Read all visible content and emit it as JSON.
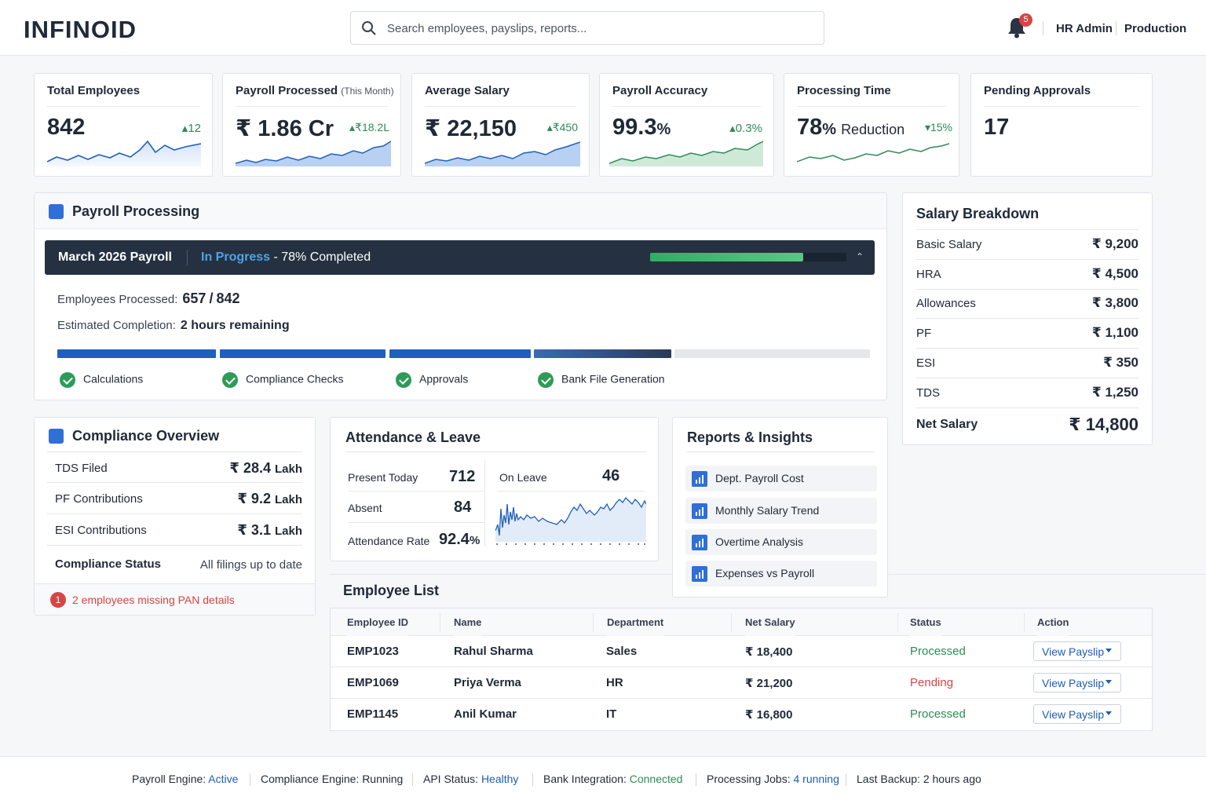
{
  "header": {
    "logo": "INFINOID",
    "search_placeholder": "Search employees, payslips, reports...",
    "notification_count": "5",
    "user": "HR Admin",
    "environment": "Production"
  },
  "kpis": [
    {
      "title": "Total Employees",
      "value": "842",
      "delta": "12",
      "trend": "up"
    },
    {
      "title": "Payroll Processed",
      "title_note": "(This Month)",
      "currency": "₹",
      "value": "1.86 Cr",
      "delta": "₹18.2L",
      "trend": "up"
    },
    {
      "title": "Average Salary",
      "currency": "₹",
      "value": "22,150",
      "delta": "₹450",
      "trend": "up"
    },
    {
      "title": "Payroll Accuracy",
      "value": "99.3",
      "unit": "%",
      "delta": "0.3%",
      "trend": "up"
    },
    {
      "title": "Processing Time",
      "value": "78",
      "unit": "%",
      "suffix": "Reduction",
      "delta": "15%",
      "trend": "down"
    },
    {
      "title": "Pending Approvals",
      "value": "17"
    }
  ],
  "payroll": {
    "title": "Payroll Processing",
    "run_name": "March 2026 Payroll",
    "status": "In Progress",
    "completed_text": " - 78% Completed",
    "progress": 0.78,
    "employees_label": "Employees Processed:",
    "employees_processed": "657",
    "employees_total": "842",
    "eta_label": "Estimated Completion:",
    "eta": "2 hours remaining",
    "steps": [
      "Calculations",
      "Compliance Checks",
      "Approvals",
      "Bank File Generation"
    ]
  },
  "salary_breakdown": {
    "title": "Salary Breakdown",
    "rows": [
      {
        "label": "Basic Salary",
        "value": "₹ 9,200"
      },
      {
        "label": "HRA",
        "value": "₹ 4,500"
      },
      {
        "label": "Allowances",
        "value": "₹ 3,800"
      },
      {
        "label": "PF",
        "value": "₹ 1,100"
      },
      {
        "label": "ESI",
        "value": "₹ 350"
      },
      {
        "label": "TDS",
        "value": "₹ 1,250"
      }
    ],
    "net_label": "Net Salary",
    "net_value": "₹ 14,800"
  },
  "compliance": {
    "title": "Compliance Overview",
    "rows": [
      {
        "label": "TDS Filed",
        "value": "₹ 28.4",
        "unit": "Lakh"
      },
      {
        "label": "PF Contributions",
        "value": "₹ 9.2",
        "unit": "Lakh"
      },
      {
        "label": "ESI Contributions",
        "value": "₹ 3.1",
        "unit": "Lakh"
      }
    ],
    "status_label": "Compliance Status",
    "status_value": "All filings up to date",
    "alert_count": "1",
    "alert_text": "2 employees missing PAN details"
  },
  "attendance": {
    "title": "Attendance & Leave",
    "present_label": "Present Today",
    "present": "712",
    "absent_label": "Absent",
    "absent": "84",
    "rate_label": "Attendance Rate",
    "rate": "92.4",
    "rate_unit": "%",
    "leave_label": "On Leave",
    "leave": "46"
  },
  "reports": {
    "title": "Reports & Insights",
    "items": [
      "Dept. Payroll Cost",
      "Monthly Salary Trend",
      "Overtime Analysis",
      "Expenses vs Payroll"
    ]
  },
  "employees": {
    "title": "Employee List",
    "columns": [
      "Employee ID",
      "Name",
      "Department",
      "Net Salary",
      "Status",
      "Action"
    ],
    "rows": [
      {
        "id": "EMP1023",
        "name": "Rahul Sharma",
        "dept": "Sales",
        "salary": "₹ 18,400",
        "status": "Processed",
        "action": "View Payslip"
      },
      {
        "id": "EMP1069",
        "name": "Priya Verma",
        "dept": "HR",
        "salary": "₹ 21,200",
        "status": "Pending",
        "action": "View Payslip"
      },
      {
        "id": "EMP1145",
        "name": "Anil Kumar",
        "dept": "IT",
        "salary": "₹ 16,800",
        "status": "Processed",
        "action": "View Payslip"
      }
    ]
  },
  "footer": [
    {
      "label": "Payroll Engine:",
      "value": "Active"
    },
    {
      "label": "Compliance Engine:",
      "value": "Running"
    },
    {
      "label": "API Status:",
      "value": "Healthy"
    },
    {
      "label": "Bank Integration:",
      "value": "Connected"
    },
    {
      "label": "Processing Jobs:",
      "value": "4 running"
    },
    {
      "label": "Last Backup:",
      "value": "2 hours ago"
    }
  ],
  "colors": {
    "primary": "#2f6fd6",
    "success": "#2e8b57",
    "danger": "#d64545",
    "dark_bar": "#253140",
    "link": "#1d5db5"
  }
}
